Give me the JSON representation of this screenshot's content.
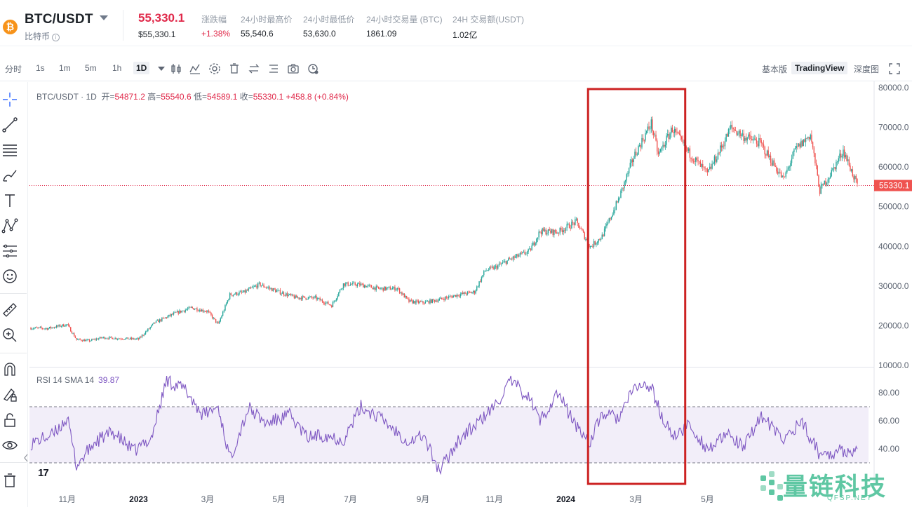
{
  "header": {
    "pair": "BTC/USDT",
    "coin_name": "比特币",
    "price": "55,330.1",
    "price_usd": "$55,330.1",
    "stats": [
      {
        "label": "涨跌幅",
        "value": "+1.38%"
      },
      {
        "label": "24小时最高价",
        "value": "55,540.6"
      },
      {
        "label": "24小时最低价",
        "value": "53,630.0"
      },
      {
        "label": "24小时交易量 (BTC)",
        "value": "1861.09"
      },
      {
        "label": "24H 交易额(USDT)",
        "value": "1.02亿"
      }
    ]
  },
  "toolbar": {
    "intervals": [
      "分时",
      "1s",
      "1m",
      "5m",
      "1h",
      "1D"
    ],
    "active_interval": "1D",
    "views": [
      "基本版",
      "TradingView",
      "深度图"
    ],
    "active_view": "TradingView"
  },
  "legend": {
    "symbol": "BTC/USDT · 1D",
    "open_label": "开=",
    "open": "54871.2",
    "high_label": "高=",
    "high": "55540.6",
    "low_label": "低=",
    "low": "54589.1",
    "close_label": "收=",
    "close": "55330.1",
    "change": "+458.8 (+0.84%)"
  },
  "rsi_legend": {
    "label": "RSI 14 SMA 14",
    "value": "39.87"
  },
  "colors": {
    "up": "#26a69a",
    "down": "#ef5350",
    "rsi": "#7e57c2",
    "highlight_box": "#cc2222",
    "price_line": "#e0294a"
  },
  "watermark": {
    "text": "量链科技",
    "sub": "QFSP.NET"
  },
  "chart_data": [
    {
      "type": "line",
      "subtype": "candlestick",
      "title": "BTC/USDT · 1D",
      "ylim": [
        10000,
        80000
      ],
      "y_ticks": [
        "80000.0",
        "70000.0",
        "60000.0",
        "50000.0",
        "40000.0",
        "30000.0",
        "20000.0",
        "10000.0"
      ],
      "x_ticks": [
        "11月",
        "2023",
        "3月",
        "5月",
        "7月",
        "9月",
        "11月",
        "2024",
        "3月",
        "5月"
      ],
      "last_price_label": "55330.1",
      "grid": false,
      "x": [
        "2022-10-01",
        "2022-10-15",
        "2022-11-01",
        "2022-11-09",
        "2022-11-20",
        "2022-12-01",
        "2022-12-15",
        "2023-01-01",
        "2023-01-15",
        "2023-02-01",
        "2023-02-15",
        "2023-03-01",
        "2023-03-10",
        "2023-03-20",
        "2023-04-01",
        "2023-04-14",
        "2023-05-01",
        "2023-05-15",
        "2023-06-01",
        "2023-06-15",
        "2023-06-25",
        "2023-07-10",
        "2023-07-25",
        "2023-08-10",
        "2023-08-20",
        "2023-09-01",
        "2023-09-15",
        "2023-10-01",
        "2023-10-15",
        "2023-10-24",
        "2023-11-01",
        "2023-11-15",
        "2023-12-01",
        "2023-12-10",
        "2023-12-25",
        "2024-01-10",
        "2024-01-22",
        "2024-02-01",
        "2024-02-15",
        "2024-02-28",
        "2024-03-05",
        "2024-03-14",
        "2024-03-20",
        "2024-04-01",
        "2024-04-14",
        "2024-05-01",
        "2024-05-15",
        "2024-05-21",
        "2024-06-01",
        "2024-06-15",
        "2024-07-05",
        "2024-07-15",
        "2024-07-28",
        "2024-08-05",
        "2024-08-15",
        "2024-08-25",
        "2024-09-06"
      ],
      "series": [
        {
          "values": [
            19400,
            19300,
            20300,
            16500,
            16200,
            17000,
            16800,
            16600,
            20800,
            23100,
            24500,
            23600,
            20300,
            27800,
            28400,
            30400,
            28500,
            27100,
            27000,
            25100,
            30500,
            30300,
            29300,
            29400,
            26100,
            25800,
            26600,
            27800,
            28500,
            33900,
            34600,
            36800,
            38800,
            43800,
            43600,
            46200,
            39900,
            42500,
            51800,
            62500,
            66000,
            71000,
            63000,
            69700,
            64000,
            58200,
            66200,
            70000,
            67700,
            66000,
            56800,
            64300,
            68200,
            54000,
            58700,
            64200,
            55330
          ]
        }
      ]
    },
    {
      "type": "line",
      "title": "RSI 14 SMA 14",
      "ylim": [
        20,
        95
      ],
      "y_ticks": [
        "80.00",
        "60.00",
        "40.00"
      ],
      "bands": [
        30,
        70
      ],
      "x": [
        "2022-10-01",
        "2022-10-20",
        "2022-11-01",
        "2022-11-09",
        "2022-11-25",
        "2022-12-10",
        "2022-12-28",
        "2023-01-12",
        "2023-01-25",
        "2023-02-10",
        "2023-02-25",
        "2023-03-10",
        "2023-03-20",
        "2023-04-05",
        "2023-04-20",
        "2023-05-10",
        "2023-05-25",
        "2023-06-10",
        "2023-06-25",
        "2023-07-10",
        "2023-07-25",
        "2023-08-10",
        "2023-08-20",
        "2023-09-01",
        "2023-09-15",
        "2023-10-01",
        "2023-10-20",
        "2023-11-01",
        "2023-11-15",
        "2023-12-01",
        "2023-12-10",
        "2023-12-25",
        "2024-01-10",
        "2024-01-22",
        "2024-02-01",
        "2024-02-15",
        "2024-03-01",
        "2024-03-14",
        "2024-03-25",
        "2024-04-05",
        "2024-04-14",
        "2024-05-01",
        "2024-05-20",
        "2024-06-01",
        "2024-06-15",
        "2024-07-05",
        "2024-07-20",
        "2024-08-05",
        "2024-08-20",
        "2024-09-06"
      ],
      "series": [
        {
          "name": "RSI",
          "values": [
            44,
            50,
            62,
            28,
            45,
            52,
            38,
            48,
            89,
            82,
            64,
            70,
            33,
            69,
            58,
            64,
            48,
            50,
            46,
            70,
            63,
            52,
            45,
            50,
            24,
            46,
            60,
            70,
            88,
            76,
            60,
            80,
            56,
            45,
            65,
            62,
            85,
            84,
            58,
            48,
            58,
            40,
            50,
            40,
            64,
            46,
            60,
            36,
            38,
            39.87
          ]
        }
      ]
    }
  ]
}
